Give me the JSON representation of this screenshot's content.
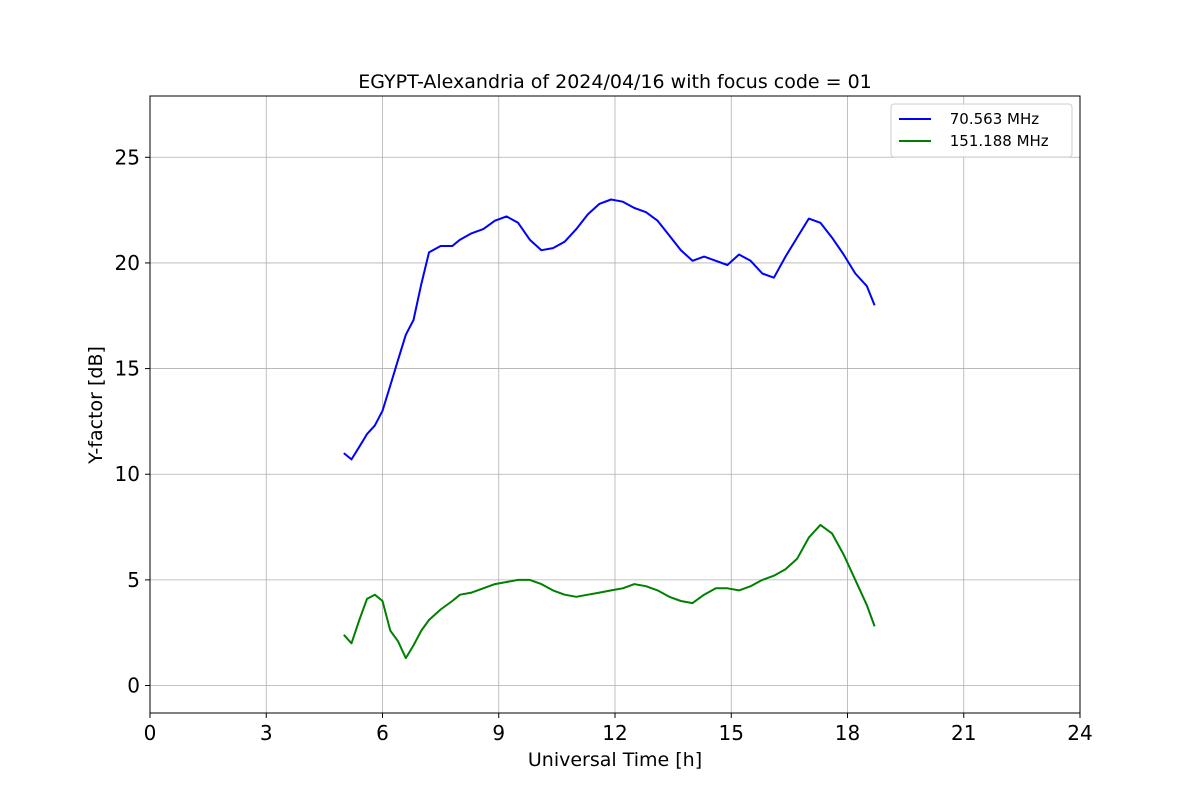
{
  "chart_data": {
    "type": "line",
    "title": "EGYPT-Alexandria of 2024/04/16 with focus code = 01",
    "xlabel": "Universal Time [h]",
    "ylabel": "Y-factor [dB]",
    "xlim": [
      0,
      24
    ],
    "ylim": [
      -1.3,
      27.9
    ],
    "xticks": [
      0,
      3,
      6,
      9,
      12,
      15,
      18,
      21,
      24
    ],
    "yticks": [
      0,
      5,
      10,
      15,
      20,
      25
    ],
    "grid": true,
    "legend_position": "top-right",
    "series": [
      {
        "name": " 70.563 MHz",
        "color": "#0000ff",
        "x": [
          5.0,
          5.2,
          5.4,
          5.6,
          5.8,
          6.0,
          6.2,
          6.4,
          6.6,
          6.8,
          7.0,
          7.2,
          7.5,
          7.8,
          8.0,
          8.3,
          8.6,
          8.9,
          9.2,
          9.5,
          9.8,
          10.1,
          10.4,
          10.7,
          11.0,
          11.3,
          11.6,
          11.9,
          12.2,
          12.5,
          12.8,
          13.1,
          13.4,
          13.7,
          14.0,
          14.3,
          14.6,
          14.9,
          15.2,
          15.5,
          15.8,
          16.1,
          16.4,
          16.7,
          17.0,
          17.3,
          17.6,
          17.9,
          18.2,
          18.5,
          18.7
        ],
        "y": [
          11.0,
          10.7,
          11.3,
          11.9,
          12.3,
          13.0,
          14.2,
          15.4,
          16.6,
          17.3,
          19.0,
          20.5,
          20.8,
          20.8,
          21.1,
          21.4,
          21.6,
          22.0,
          22.2,
          21.9,
          21.1,
          20.6,
          20.7,
          21.0,
          21.6,
          22.3,
          22.8,
          23.0,
          22.9,
          22.6,
          22.4,
          22.0,
          21.3,
          20.6,
          20.1,
          20.3,
          20.1,
          19.9,
          20.4,
          20.1,
          19.5,
          19.3,
          20.3,
          21.2,
          22.1,
          21.9,
          21.2,
          20.4,
          19.5,
          18.9,
          18.0
        ]
      },
      {
        "name": " 151.188 MHz",
        "color": "#008000",
        "x": [
          5.0,
          5.2,
          5.4,
          5.6,
          5.8,
          6.0,
          6.2,
          6.4,
          6.6,
          6.8,
          7.0,
          7.2,
          7.5,
          7.8,
          8.0,
          8.3,
          8.6,
          8.9,
          9.2,
          9.5,
          9.8,
          10.1,
          10.4,
          10.7,
          11.0,
          11.3,
          11.6,
          11.9,
          12.2,
          12.5,
          12.8,
          13.1,
          13.4,
          13.7,
          14.0,
          14.3,
          14.6,
          14.9,
          15.2,
          15.5,
          15.8,
          16.1,
          16.4,
          16.7,
          17.0,
          17.3,
          17.6,
          17.9,
          18.2,
          18.5,
          18.7
        ],
        "y": [
          2.4,
          2.0,
          3.1,
          4.1,
          4.3,
          4.0,
          2.6,
          2.1,
          1.3,
          1.9,
          2.6,
          3.1,
          3.6,
          4.0,
          4.3,
          4.4,
          4.6,
          4.8,
          4.9,
          5.0,
          5.0,
          4.8,
          4.5,
          4.3,
          4.2,
          4.3,
          4.4,
          4.5,
          4.6,
          4.8,
          4.7,
          4.5,
          4.2,
          4.0,
          3.9,
          4.3,
          4.6,
          4.6,
          4.5,
          4.7,
          5.0,
          5.2,
          5.5,
          6.0,
          7.0,
          7.6,
          7.2,
          6.2,
          5.0,
          3.8,
          2.8
        ]
      }
    ]
  }
}
